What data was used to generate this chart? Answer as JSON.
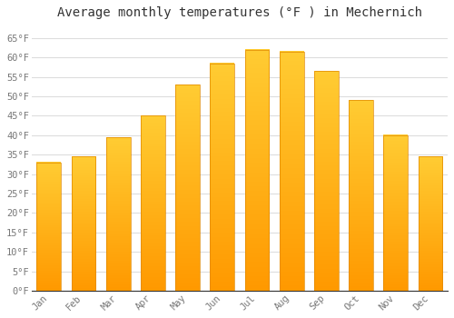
{
  "title": "Average monthly temperatures (°F ) in Mechernich",
  "months": [
    "Jan",
    "Feb",
    "Mar",
    "Apr",
    "May",
    "Jun",
    "Jul",
    "Aug",
    "Sep",
    "Oct",
    "Nov",
    "Dec"
  ],
  "values": [
    33,
    34.5,
    39.5,
    45,
    53,
    58.5,
    62,
    61.5,
    56.5,
    49,
    40,
    34.5
  ],
  "bar_color_top": "#FFCC33",
  "bar_color_bottom": "#FF9900",
  "bar_edge_color": "#E08800",
  "background_color": "#ffffff",
  "grid_color": "#dddddd",
  "title_fontsize": 10,
  "tick_fontsize": 7.5,
  "ylim": [
    0,
    68
  ],
  "yticks": [
    0,
    5,
    10,
    15,
    20,
    25,
    30,
    35,
    40,
    45,
    50,
    55,
    60,
    65
  ],
  "ytick_labels": [
    "0°F",
    "5°F",
    "10°F",
    "15°F",
    "20°F",
    "25°F",
    "30°F",
    "35°F",
    "40°F",
    "45°F",
    "50°F",
    "55°F",
    "60°F",
    "65°F"
  ],
  "bar_width": 0.7
}
